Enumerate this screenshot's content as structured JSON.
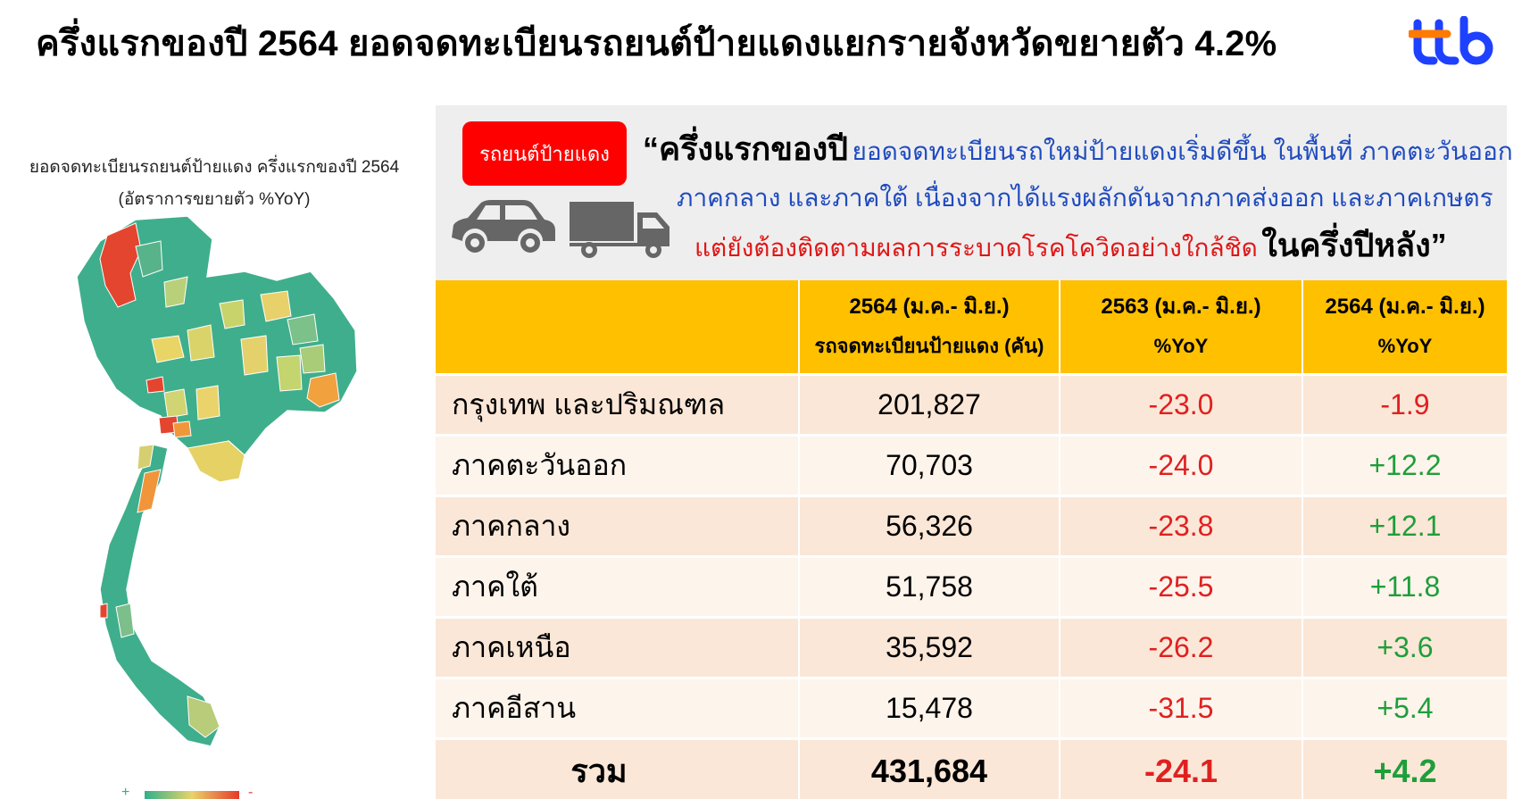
{
  "title": "ครึ่งแรกของปี 2564 ยอดจดทะเบียนรถยนต์ป้ายแดงแยกรายจังหวัดขยายตัว 4.2%",
  "logo_text": "ttb",
  "map": {
    "caption_line1": "ยอดจดทะเบียนรถยนต์ป้ายแดง ครึ่งแรกของปี 2564",
    "caption_line2": "(อัตราการขยายตัว %YoY)",
    "legend_plus": "+",
    "legend_minus": "-",
    "colors": {
      "high": "#2fb08a",
      "mid": "#e8d36a",
      "orange": "#f29a3c",
      "low": "#e63a2a"
    }
  },
  "panel": {
    "badge_label": "รถยนต์ป้ายแดง",
    "quote_open": "“ครึ่งแรกของปี",
    "quote_line1": "ยอดจดทะเบียนรถใหม่ป้ายแดงเริ่มดีขึ้น ในพื้นที่ ภาคตะวันออก",
    "quote_line2": "ภาคกลาง และภาคใต้ เนื่องจากได้แรงผลักดันจากภาคส่งออก และภาคเกษตร",
    "quote_line3": "แต่ยังต้องติดตามผลการระบาดโรคโควิดอย่างใกล้ชิด",
    "quote_close": "ในครึ่งปีหลัง”"
  },
  "table": {
    "headers": [
      {
        "top": "",
        "bottom": ""
      },
      {
        "top": "2564 (ม.ค.- มิ.ย.)",
        "bottom": "รถจดทะเบียนป้ายแดง (คัน)"
      },
      {
        "top": "2563 (ม.ค.- มิ.ย.)",
        "bottom": "%YoY"
      },
      {
        "top": "2564 (ม.ค.- มิ.ย.)",
        "bottom": "%YoY"
      }
    ],
    "rows": [
      {
        "region": "กรุงเทพ และปริมณฑล",
        "units": "201,827",
        "yoy2563": "-23.0",
        "yoy2564": "-1.9"
      },
      {
        "region": "ภาคตะวันออก",
        "units": "70,703",
        "yoy2563": "-24.0",
        "yoy2564": "+12.2"
      },
      {
        "region": "ภาคกลาง",
        "units": "56,326",
        "yoy2563": "-23.8",
        "yoy2564": "+12.1"
      },
      {
        "region": "ภาคใต้",
        "units": "51,758",
        "yoy2563": "-25.5",
        "yoy2564": "+11.8"
      },
      {
        "region": "ภาคเหนือ",
        "units": "35,592",
        "yoy2563": "-26.2",
        "yoy2564": "+3.6"
      },
      {
        "region": "ภาคอีสาน",
        "units": "15,478",
        "yoy2563": "-31.5",
        "yoy2564": "+5.4"
      }
    ],
    "total": {
      "region": "รวม",
      "units": "431,684",
      "yoy2563": "-24.1",
      "yoy2564": "+4.2"
    }
  }
}
